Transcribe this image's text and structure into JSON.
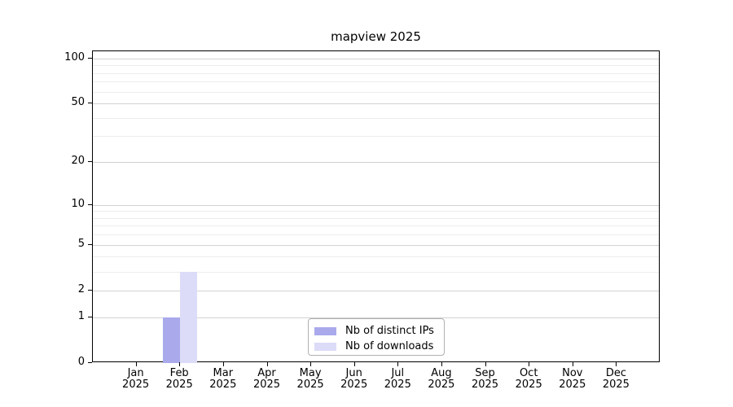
{
  "chart_data": {
    "type": "bar",
    "title": "mapview 2025",
    "categories": [
      "Jan",
      "Feb",
      "Mar",
      "Apr",
      "May",
      "Jun",
      "Jul",
      "Aug",
      "Sep",
      "Oct",
      "Nov",
      "Dec"
    ],
    "year": "2025",
    "series": [
      {
        "name": "Nb of distinct IPs",
        "color": "#a9a9ec",
        "values": [
          0,
          1,
          0,
          0,
          0,
          0,
          0,
          0,
          0,
          0,
          0,
          0
        ]
      },
      {
        "name": "Nb of downloads",
        "color": "#dcdcf8",
        "values": [
          0,
          3,
          0,
          0,
          0,
          0,
          0,
          0,
          0,
          0,
          0,
          0
        ]
      }
    ],
    "xlabel": "",
    "ylabel": "",
    "y_scale": "log10(1+x)",
    "y_ticks": [
      0,
      1,
      2,
      5,
      10,
      20,
      50,
      100
    ],
    "y_minor_gridlines": [
      3,
      4,
      6,
      7,
      8,
      9,
      30,
      40,
      60,
      70,
      80,
      90
    ],
    "ylim": [
      0,
      112
    ],
    "grid": "horizontal",
    "legend_position": "bottom-center",
    "colors": {
      "axis": "#000000",
      "grid_major": "#d2d2d2",
      "grid_minor": "#ededed",
      "legend_border": "#b0b0b0",
      "background": "#ffffff",
      "text": "#000000"
    }
  }
}
